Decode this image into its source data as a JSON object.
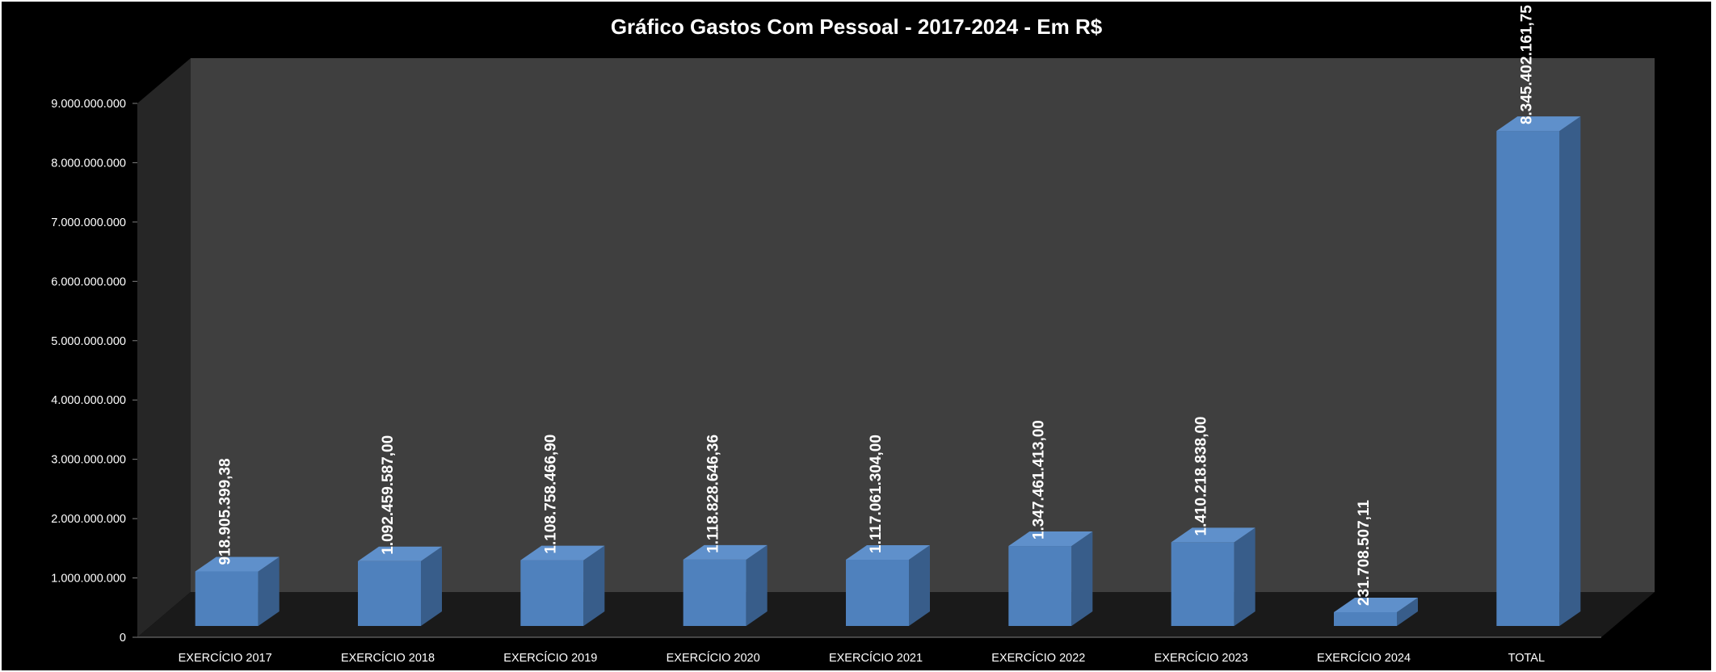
{
  "chart_data": {
    "type": "bar",
    "title": "Gráfico Gastos Com Pessoal - 2017-2024 - Em R$",
    "xlabel": "",
    "ylabel": "",
    "categories": [
      "EXERCÍCIO 2017",
      "EXERCÍCIO 2018",
      "EXERCÍCIO 2019",
      "EXERCÍCIO 2020",
      "EXERCÍCIO 2021",
      "EXERCÍCIO 2022",
      "EXERCÍCIO 2023",
      "EXERCÍCIO 2024",
      "TOTAL"
    ],
    "values": [
      918905399.38,
      1092459587.0,
      1108758466.9,
      1118828646.36,
      1117061304.0,
      1347461413.0,
      1410218838.0,
      231708507.11,
      8345402161.75
    ],
    "data_labels": [
      "918.905.399,38",
      "1.092.459.587,00",
      "1.108.758.466,90",
      "1.118.828.646,36",
      "1.117.061.304,00",
      "1.347.461.413,00",
      "1.410.218.838,00",
      "231.708.507,11",
      "8.345.402.161,75"
    ],
    "ylim": [
      0,
      9000000000
    ],
    "yticks": [
      0,
      1000000000,
      2000000000,
      3000000000,
      4000000000,
      5000000000,
      6000000000,
      7000000000,
      8000000000,
      9000000000
    ],
    "ytick_labels": [
      "0",
      "1.000.000.000",
      "2.000.000.000",
      "3.000.000.000",
      "4.000.000.000",
      "5.000.000.000",
      "6.000.000.000",
      "7.000.000.000",
      "8.000.000.000",
      "9.000.000.000"
    ],
    "grid": false,
    "legend": "none",
    "style": "3d-column"
  },
  "colors": {
    "background": "#000000",
    "back_wall": "#3f3f3f",
    "side_wall": "#262626",
    "floor": "#1a1a1a",
    "bar_front": "#4f81bd",
    "bar_top": "#5f90cb",
    "bar_side": "#385d8a",
    "text": "#ffffff"
  }
}
